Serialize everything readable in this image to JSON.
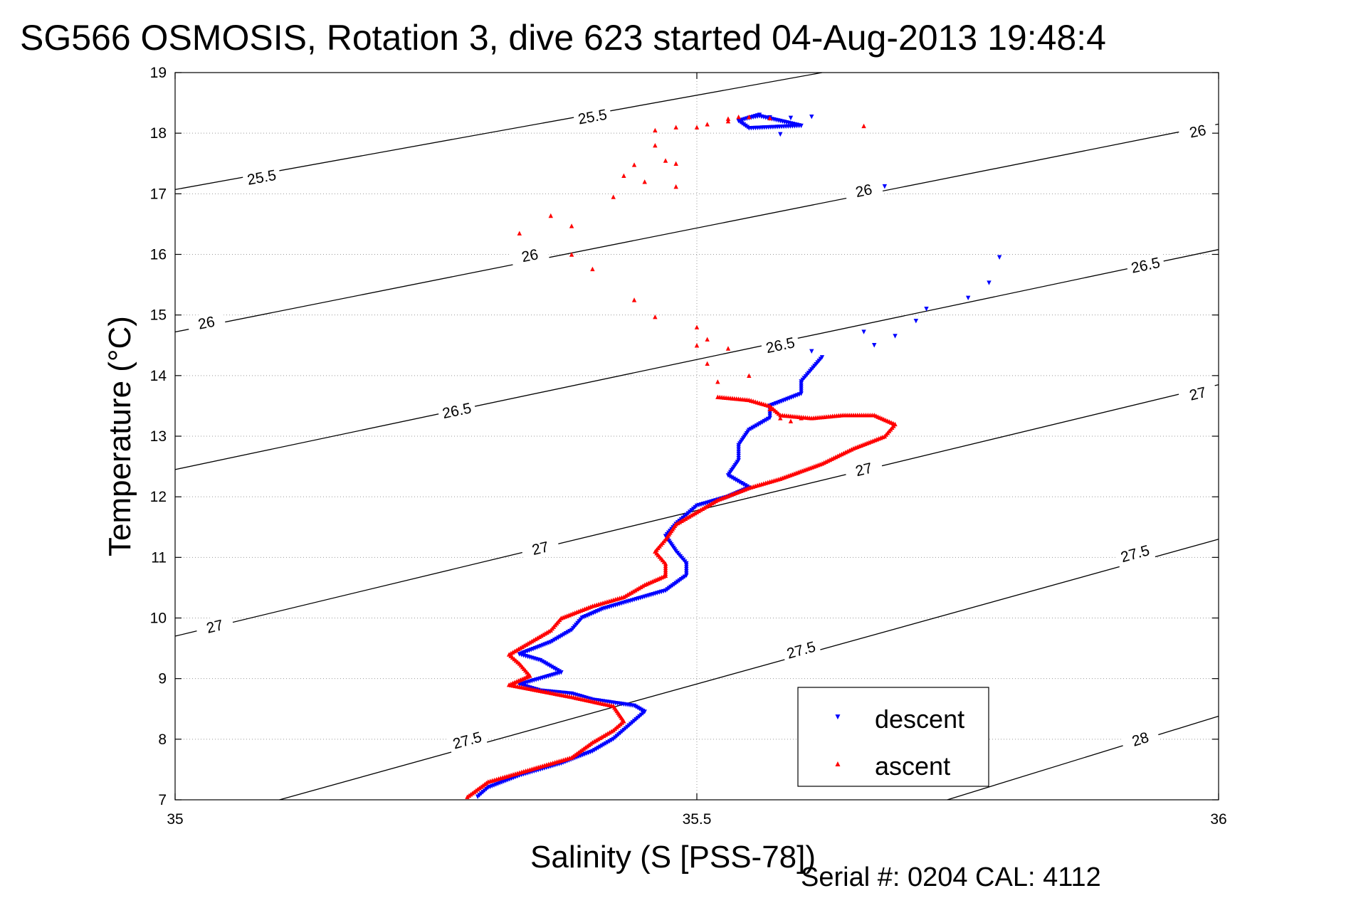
{
  "chart_data": {
    "type": "scatter",
    "title": "SG566 OSMOSIS, Rotation 3, dive 623 started 04-Aug-2013 19:48:4",
    "xlabel": "Salinity (S [PSS-78])",
    "ylabel": "Temperature (°C)",
    "xlim": [
      35,
      36
    ],
    "ylim": [
      7,
      19
    ],
    "xticks": [
      35,
      35.5,
      36
    ],
    "xtick_labels": [
      "35",
      "35.5",
      "36"
    ],
    "yticks": [
      7,
      8,
      9,
      10,
      11,
      12,
      13,
      14,
      15,
      16,
      17,
      18,
      19
    ],
    "ytick_labels": [
      "7",
      "8",
      "9",
      "10",
      "11",
      "12",
      "13",
      "14",
      "15",
      "16",
      "17",
      "18",
      "19"
    ],
    "grid": "dotted",
    "legend_position": "bottom-right",
    "footer": "Serial #: 0204  CAL: 4112",
    "density_contours": [
      {
        "sigma": 25.5,
        "label": "25.5",
        "points": [
          [
            35,
            17.07
          ],
          [
            35.62,
            19
          ]
        ],
        "labels_at": [
          [
            35.083,
            17.27
          ],
          [
            35.4,
            18.27
          ]
        ]
      },
      {
        "sigma": 26,
        "label": "26",
        "points": [
          [
            35,
            14.72
          ],
          [
            36,
            18.15
          ]
        ],
        "labels_at": [
          [
            35.03,
            14.87
          ],
          [
            35.34,
            15.98
          ],
          [
            35.66,
            17.05
          ],
          [
            35.98,
            18.03
          ]
        ]
      },
      {
        "sigma": 26.5,
        "label": "26.5",
        "points": [
          [
            35,
            12.45
          ],
          [
            36,
            16.08
          ]
        ],
        "labels_at": [
          [
            35.27,
            13.42
          ],
          [
            35.58,
            14.5
          ],
          [
            35.93,
            15.82
          ]
        ]
      },
      {
        "sigma": 27,
        "label": "27",
        "points": [
          [
            35,
            9.7
          ],
          [
            36,
            13.85
          ]
        ],
        "labels_at": [
          [
            35.038,
            9.86
          ],
          [
            35.35,
            11.15
          ],
          [
            35.66,
            12.45
          ],
          [
            35.98,
            13.7
          ]
        ]
      },
      {
        "sigma": 27.5,
        "label": "27.5",
        "points": [
          [
            35.1,
            7
          ],
          [
            36,
            11.3
          ]
        ],
        "labels_at": [
          [
            35.28,
            7.98
          ],
          [
            35.6,
            9.47
          ],
          [
            35.92,
            11.06
          ]
        ]
      },
      {
        "sigma": 28,
        "label": "28",
        "points": [
          [
            35.74,
            7
          ],
          [
            36,
            8.38
          ]
        ],
        "labels_at": [
          [
            35.925,
            8.0
          ]
        ]
      }
    ],
    "series": [
      {
        "name": "descent",
        "color": "#0000ff",
        "marker": "triangle-down",
        "path": [
          [
            35.56,
            18.3
          ],
          [
            35.54,
            18.2
          ],
          [
            35.55,
            18.08
          ],
          [
            35.6,
            18.12
          ],
          [
            35.56,
            18.28
          ],
          [
            35.55,
            18.25
          ]
        ],
        "stray_points": [
          [
            35.57,
            18.26
          ],
          [
            35.59,
            18.25
          ],
          [
            35.61,
            18.27
          ],
          [
            35.58,
            17.98
          ],
          [
            35.68,
            17.12
          ],
          [
            35.79,
            15.95
          ],
          [
            35.78,
            15.53
          ],
          [
            35.76,
            15.28
          ],
          [
            35.72,
            15.1
          ],
          [
            35.71,
            14.9
          ],
          [
            35.69,
            14.65
          ],
          [
            35.66,
            14.72
          ],
          [
            35.67,
            14.5
          ],
          [
            35.61,
            14.4
          ]
        ],
        "points": [
          [
            35.29,
            7.05
          ],
          [
            35.3,
            7.2
          ],
          [
            35.33,
            7.4
          ],
          [
            35.37,
            7.6
          ],
          [
            35.4,
            7.8
          ],
          [
            35.42,
            8.0
          ],
          [
            35.43,
            8.15
          ],
          [
            35.44,
            8.3
          ],
          [
            35.45,
            8.45
          ],
          [
            35.44,
            8.55
          ],
          [
            35.4,
            8.65
          ],
          [
            35.38,
            8.75
          ],
          [
            35.35,
            8.8
          ],
          [
            35.33,
            8.9
          ],
          [
            35.37,
            9.1
          ],
          [
            35.35,
            9.3
          ],
          [
            35.33,
            9.4
          ],
          [
            35.36,
            9.6
          ],
          [
            35.38,
            9.8
          ],
          [
            35.39,
            10.0
          ],
          [
            35.41,
            10.15
          ],
          [
            35.44,
            10.3
          ],
          [
            35.47,
            10.45
          ],
          [
            35.49,
            10.7
          ],
          [
            35.49,
            10.9
          ],
          [
            35.48,
            11.1
          ],
          [
            35.47,
            11.35
          ],
          [
            35.48,
            11.55
          ],
          [
            35.49,
            11.7
          ],
          [
            35.5,
            11.85
          ],
          [
            35.53,
            12.0
          ],
          [
            35.55,
            12.15
          ],
          [
            35.53,
            12.35
          ],
          [
            35.54,
            12.6
          ],
          [
            35.54,
            12.85
          ],
          [
            35.55,
            13.1
          ],
          [
            35.57,
            13.3
          ],
          [
            35.57,
            13.5
          ],
          [
            35.6,
            13.7
          ],
          [
            35.6,
            13.9
          ],
          [
            35.61,
            14.1
          ],
          [
            35.62,
            14.3
          ]
        ]
      },
      {
        "name": "ascent",
        "color": "#ff0000",
        "marker": "triangle-up",
        "stray_points": [
          [
            35.33,
            16.35
          ],
          [
            35.36,
            16.64
          ],
          [
            35.38,
            16.47
          ],
          [
            35.38,
            16.0
          ],
          [
            35.4,
            15.76
          ],
          [
            35.42,
            16.95
          ],
          [
            35.43,
            17.3
          ],
          [
            35.44,
            17.48
          ],
          [
            35.46,
            17.8
          ],
          [
            35.47,
            17.55
          ],
          [
            35.44,
            15.25
          ],
          [
            35.45,
            17.2
          ],
          [
            35.46,
            14.97
          ],
          [
            35.48,
            17.12
          ],
          [
            35.46,
            18.05
          ],
          [
            35.48,
            18.1
          ],
          [
            35.48,
            17.5
          ],
          [
            35.5,
            18.1
          ],
          [
            35.51,
            18.15
          ],
          [
            35.53,
            18.2
          ],
          [
            35.53,
            18.24
          ],
          [
            35.54,
            18.27
          ],
          [
            35.55,
            18.27
          ],
          [
            35.57,
            18.25
          ],
          [
            35.66,
            18.12
          ],
          [
            35.5,
            14.8
          ],
          [
            35.5,
            14.5
          ],
          [
            35.51,
            14.6
          ],
          [
            35.51,
            14.2
          ],
          [
            35.52,
            13.9
          ],
          [
            35.53,
            14.45
          ],
          [
            35.55,
            14.0
          ],
          [
            35.57,
            13.45
          ],
          [
            35.58,
            13.3
          ],
          [
            35.59,
            13.25
          ],
          [
            35.6,
            13.3
          ]
        ],
        "points": [
          [
            35.28,
            7.05
          ],
          [
            35.3,
            7.3
          ],
          [
            35.34,
            7.5
          ],
          [
            35.38,
            7.7
          ],
          [
            35.4,
            7.95
          ],
          [
            35.42,
            8.15
          ],
          [
            35.43,
            8.3
          ],
          [
            35.42,
            8.55
          ],
          [
            35.38,
            8.7
          ],
          [
            35.35,
            8.8
          ],
          [
            35.32,
            8.9
          ],
          [
            35.34,
            9.05
          ],
          [
            35.33,
            9.25
          ],
          [
            35.32,
            9.4
          ],
          [
            35.34,
            9.6
          ],
          [
            35.36,
            9.8
          ],
          [
            35.37,
            10.0
          ],
          [
            35.4,
            10.2
          ],
          [
            35.43,
            10.35
          ],
          [
            35.45,
            10.55
          ],
          [
            35.47,
            10.7
          ],
          [
            35.47,
            10.9
          ],
          [
            35.46,
            11.1
          ],
          [
            35.47,
            11.3
          ],
          [
            35.48,
            11.55
          ],
          [
            35.5,
            11.75
          ],
          [
            35.52,
            11.95
          ],
          [
            35.55,
            12.15
          ],
          [
            35.58,
            12.3
          ],
          [
            35.62,
            12.55
          ],
          [
            35.65,
            12.8
          ],
          [
            35.68,
            13.0
          ],
          [
            35.69,
            13.2
          ],
          [
            35.67,
            13.35
          ],
          [
            35.64,
            13.35
          ],
          [
            35.61,
            13.3
          ],
          [
            35.58,
            13.35
          ],
          [
            35.57,
            13.5
          ],
          [
            35.55,
            13.6
          ],
          [
            35.52,
            13.65
          ]
        ]
      }
    ]
  }
}
